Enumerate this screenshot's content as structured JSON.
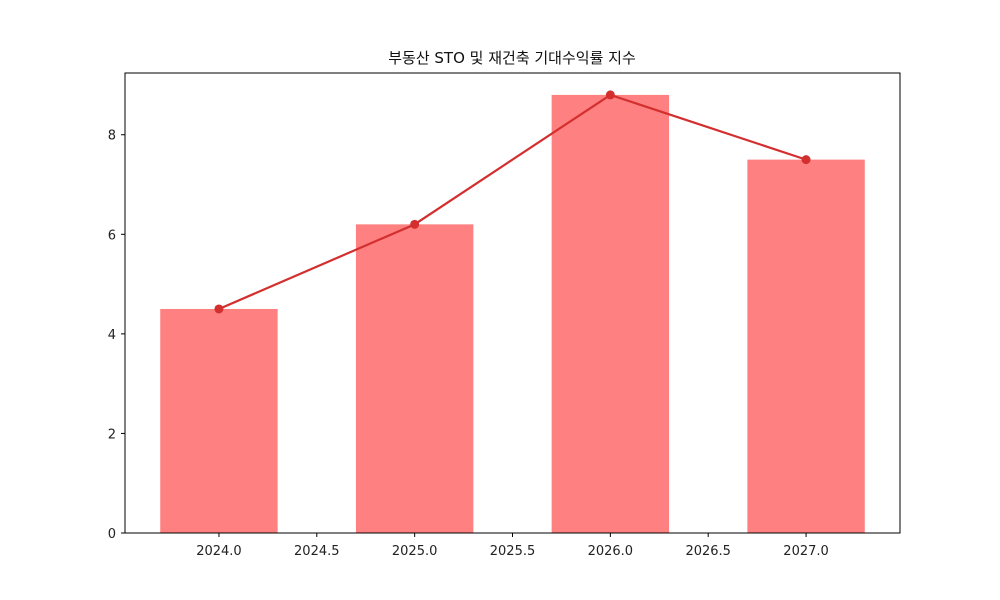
{
  "chart_data": {
    "type": "bar",
    "title": "부동산 STO 및 재건축 기대수익률 지수",
    "xlabel": "",
    "ylabel": "",
    "x": [
      2024,
      2025,
      2026,
      2027
    ],
    "series": [
      {
        "name": "bar",
        "type": "bar",
        "values": [
          4.5,
          6.2,
          8.8,
          7.5
        ],
        "color": "#ff8080",
        "bar_width": 0.6
      },
      {
        "name": "line",
        "type": "line",
        "values": [
          4.5,
          6.2,
          8.8,
          7.5
        ],
        "color": "#d32f2f",
        "marker": "circle"
      }
    ],
    "xlim": [
      2023.52,
      2027.48
    ],
    "ylim": [
      0,
      9.24
    ],
    "xticks": [
      "2024.0",
      "2024.5",
      "2025.0",
      "2025.5",
      "2026.0",
      "2026.5",
      "2027.0"
    ],
    "yticks": [
      "0",
      "2",
      "4",
      "6",
      "8"
    ],
    "grid": false,
    "legend": null
  }
}
